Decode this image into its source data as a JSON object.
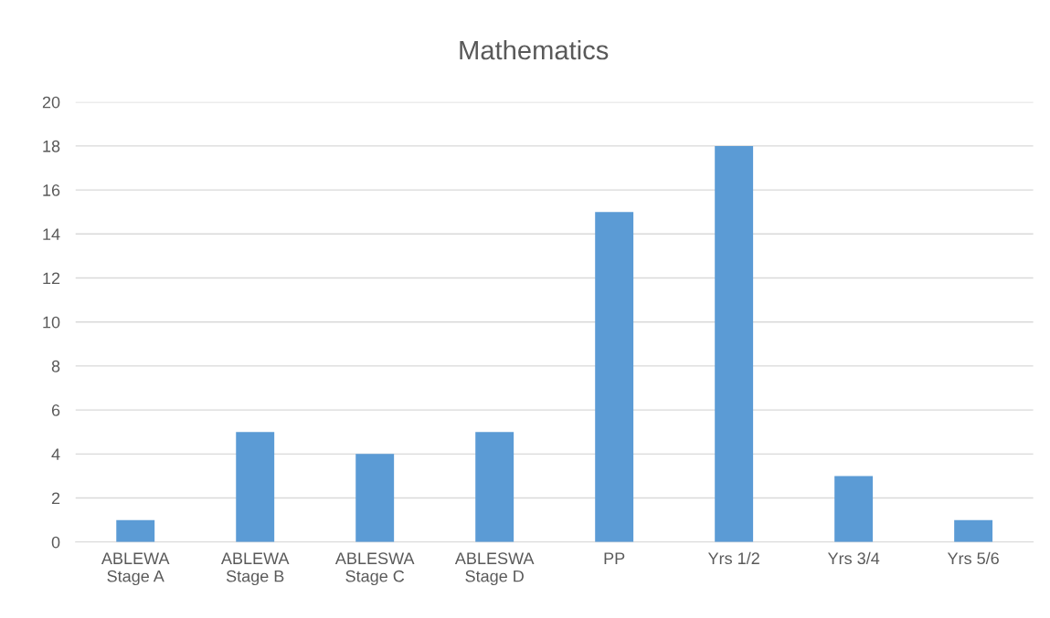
{
  "chart_data": {
    "type": "bar",
    "title": "Mathematics",
    "categories": [
      "ABLEWA\nStage A",
      "ABLEWA\nStage B",
      "ABLESWA\nStage C",
      "ABLESWA\nStage D",
      "PP",
      "Yrs 1/2",
      "Yrs 3/4",
      "Yrs 5/6"
    ],
    "values": [
      1,
      5,
      4,
      5,
      15,
      18,
      3,
      1
    ],
    "color": "#5b9bd5",
    "ylim": [
      0,
      20
    ],
    "yticks": [
      0,
      2,
      4,
      6,
      8,
      10,
      12,
      14,
      16,
      18,
      20
    ],
    "grid": "y"
  }
}
